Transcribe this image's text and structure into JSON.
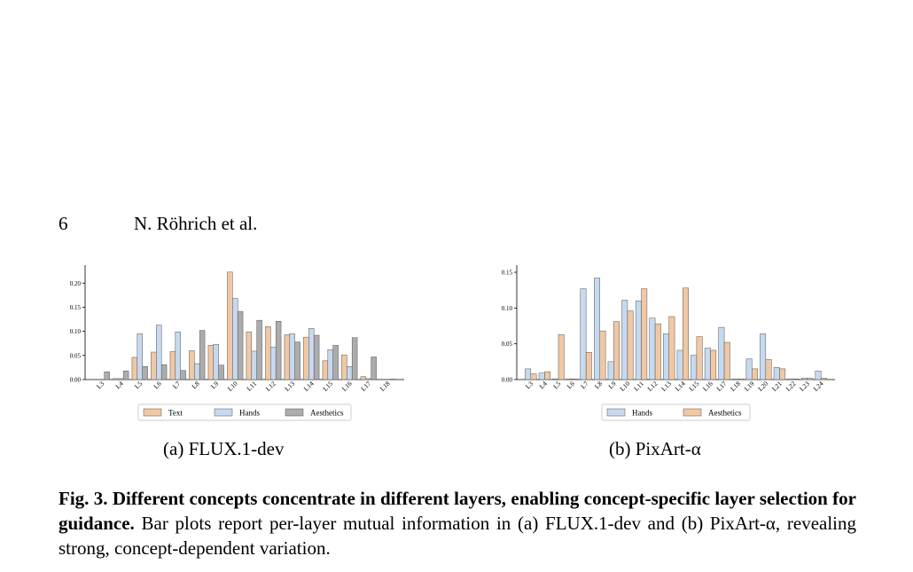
{
  "header": {
    "page_number": "6",
    "running_title": "N. Röhrich et al."
  },
  "figure": {
    "sub_a": {
      "label": "(a)",
      "title": "FLUX.1-dev"
    },
    "sub_b": {
      "label": "(b)",
      "title": "PixArt-α"
    },
    "caption": {
      "fig_label": "Fig. 3.",
      "bold_text": "Different concepts concentrate in different layers, enabling concept-specific layer selection for guidance.",
      "body": "Bar plots report per-layer mutual information in (a) FLUX.1-dev and (b) PixArt-α, revealing strong, concept-dependent variation."
    }
  },
  "chart_data": [
    {
      "type": "bar",
      "categories": [
        "L3",
        "L4",
        "L5",
        "L6",
        "L7",
        "L8",
        "L9",
        "L10",
        "L11",
        "L12",
        "L13",
        "L14",
        "L15",
        "L16",
        "L17",
        "L18"
      ],
      "ylim": [
        0,
        0.23
      ],
      "yticks": [
        "0.00",
        "0.05",
        "0.10",
        "0.15",
        "0.20"
      ],
      "legend_position": "bottom-center",
      "series": [
        {
          "name": "Text",
          "color": "#f0c8a4",
          "values": [
            0.0,
            0.002,
            0.046,
            0.057,
            0.058,
            0.06,
            0.071,
            0.223,
            0.099,
            0.11,
            0.093,
            0.088,
            0.039,
            0.051,
            0.006,
            0.0
          ]
        },
        {
          "name": "Hands",
          "color": "#c6d9ef",
          "values": [
            0.0,
            0.002,
            0.095,
            0.113,
            0.099,
            0.033,
            0.073,
            0.168,
            0.059,
            0.067,
            0.095,
            0.106,
            0.062,
            0.027,
            0.002,
            0.0
          ]
        },
        {
          "name": "Aesthetics",
          "color": "#acacac",
          "values": [
            0.016,
            0.018,
            0.027,
            0.031,
            0.019,
            0.102,
            0.03,
            0.141,
            0.123,
            0.121,
            0.078,
            0.092,
            0.071,
            0.087,
            0.047,
            0.001
          ]
        }
      ]
    },
    {
      "type": "bar",
      "categories": [
        "L3",
        "L4",
        "L5",
        "L6",
        "L7",
        "L8",
        "L9",
        "L10",
        "L11",
        "L12",
        "L13",
        "L14",
        "L15",
        "L16",
        "L17",
        "L18",
        "L19",
        "L20",
        "L21",
        "L22",
        "L23",
        "L24"
      ],
      "ylim": [
        0,
        0.155
      ],
      "yticks": [
        "0.00",
        "0.05",
        "0.10",
        "0.15"
      ],
      "legend_position": "bottom-center",
      "series": [
        {
          "name": "Hands",
          "color": "#c6d9ef",
          "values": [
            0.015,
            0.009,
            0.001,
            0.001,
            0.127,
            0.142,
            0.025,
            0.111,
            0.11,
            0.086,
            0.064,
            0.041,
            0.034,
            0.044,
            0.073,
            0.001,
            0.029,
            0.064,
            0.017,
            0.001,
            0.002,
            0.012
          ]
        },
        {
          "name": "Aesthetics",
          "color": "#f0c8a4",
          "values": [
            0.008,
            0.011,
            0.063,
            0.001,
            0.038,
            0.068,
            0.081,
            0.096,
            0.127,
            0.078,
            0.088,
            0.128,
            0.06,
            0.041,
            0.052,
            0.001,
            0.015,
            0.028,
            0.015,
            0.001,
            0.002,
            0.002
          ]
        }
      ]
    }
  ]
}
